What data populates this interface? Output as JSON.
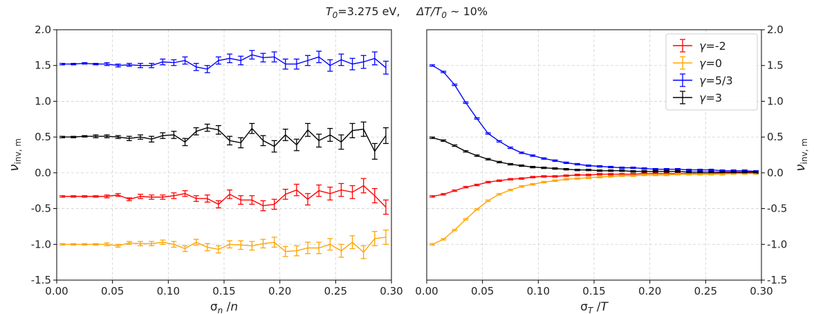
{
  "figure": {
    "title": "T0=3.275 eV,   ΔT/T0 ~ 10%"
  },
  "chart_data": [
    {
      "type": "line",
      "panel": "left",
      "xlabel": "σn /n",
      "ylabel": "νinv, m",
      "xlim": [
        0.0,
        0.3
      ],
      "ylim": [
        -1.5,
        2.0
      ],
      "xticks": [
        "0.00",
        "0.05",
        "0.10",
        "0.15",
        "0.20",
        "0.25",
        "0.30"
      ],
      "yticks": [
        "-1.5",
        "-1.0",
        "-0.5",
        "0.0",
        "0.5",
        "1.0",
        "1.5",
        "2.0"
      ],
      "grid": true,
      "x": [
        0.005,
        0.015,
        0.025,
        0.035,
        0.045,
        0.055,
        0.065,
        0.075,
        0.085,
        0.095,
        0.105,
        0.115,
        0.125,
        0.135,
        0.145,
        0.155,
        0.165,
        0.175,
        0.185,
        0.195,
        0.205,
        0.215,
        0.225,
        0.235,
        0.245,
        0.255,
        0.265,
        0.275,
        0.285,
        0.295
      ],
      "series": [
        {
          "name": "γ=5/3",
          "color": "#0000ff",
          "values": [
            1.52,
            1.52,
            1.53,
            1.52,
            1.52,
            1.5,
            1.51,
            1.5,
            1.5,
            1.55,
            1.54,
            1.57,
            1.48,
            1.45,
            1.57,
            1.6,
            1.57,
            1.65,
            1.61,
            1.62,
            1.52,
            1.52,
            1.57,
            1.62,
            1.5,
            1.58,
            1.52,
            1.55,
            1.6,
            1.47
          ],
          "errors": [
            0.01,
            0.01,
            0.01,
            0.01,
            0.02,
            0.02,
            0.02,
            0.03,
            0.03,
            0.04,
            0.04,
            0.05,
            0.05,
            0.05,
            0.05,
            0.06,
            0.06,
            0.06,
            0.06,
            0.07,
            0.07,
            0.07,
            0.07,
            0.08,
            0.08,
            0.08,
            0.08,
            0.09,
            0.09,
            0.09
          ]
        },
        {
          "name": "γ=3",
          "color": "#000000",
          "values": [
            0.5,
            0.5,
            0.51,
            0.51,
            0.51,
            0.5,
            0.48,
            0.5,
            0.47,
            0.52,
            0.53,
            0.43,
            0.58,
            0.63,
            0.6,
            0.45,
            0.42,
            0.62,
            0.45,
            0.37,
            0.53,
            0.39,
            0.6,
            0.45,
            0.53,
            0.43,
            0.59,
            0.61,
            0.3,
            0.52
          ],
          "errors": [
            0.01,
            0.01,
            0.01,
            0.02,
            0.02,
            0.02,
            0.03,
            0.03,
            0.04,
            0.04,
            0.05,
            0.05,
            0.05,
            0.05,
            0.06,
            0.06,
            0.07,
            0.07,
            0.07,
            0.08,
            0.08,
            0.08,
            0.09,
            0.09,
            0.09,
            0.1,
            0.1,
            0.1,
            0.11,
            0.11
          ]
        },
        {
          "name": "γ=-2",
          "color": "#ff0000",
          "values": [
            -0.33,
            -0.33,
            -0.33,
            -0.33,
            -0.33,
            -0.31,
            -0.37,
            -0.33,
            -0.34,
            -0.34,
            -0.32,
            -0.29,
            -0.36,
            -0.36,
            -0.44,
            -0.3,
            -0.38,
            -0.38,
            -0.46,
            -0.44,
            -0.3,
            -0.24,
            -0.37,
            -0.25,
            -0.29,
            -0.24,
            -0.27,
            -0.18,
            -0.32,
            -0.48
          ],
          "errors": [
            0.01,
            0.01,
            0.01,
            0.01,
            0.02,
            0.02,
            0.02,
            0.03,
            0.03,
            0.03,
            0.04,
            0.04,
            0.04,
            0.05,
            0.05,
            0.06,
            0.06,
            0.06,
            0.07,
            0.07,
            0.07,
            0.08,
            0.08,
            0.08,
            0.09,
            0.09,
            0.09,
            0.1,
            0.1,
            0.1
          ]
        },
        {
          "name": "γ=0",
          "color": "#ffa500",
          "values": [
            -1.0,
            -1.0,
            -1.0,
            -1.0,
            -1.0,
            -1.02,
            -0.98,
            -0.99,
            -0.99,
            -0.97,
            -1.0,
            -1.06,
            -0.97,
            -1.04,
            -1.07,
            -1.0,
            -1.01,
            -1.02,
            -0.99,
            -0.97,
            -1.1,
            -1.09,
            -1.05,
            -1.05,
            -1.0,
            -1.09,
            -0.97,
            -1.11,
            -0.92,
            -0.9
          ],
          "errors": [
            0.01,
            0.01,
            0.01,
            0.01,
            0.02,
            0.02,
            0.02,
            0.03,
            0.03,
            0.03,
            0.04,
            0.04,
            0.04,
            0.05,
            0.05,
            0.05,
            0.06,
            0.06,
            0.06,
            0.07,
            0.07,
            0.07,
            0.08,
            0.08,
            0.08,
            0.09,
            0.09,
            0.09,
            0.1,
            0.1
          ]
        }
      ]
    },
    {
      "type": "line",
      "panel": "right",
      "xlabel": "σT /T",
      "ylabel": "νinv, m",
      "xlim": [
        0.0,
        0.3
      ],
      "ylim": [
        -1.5,
        2.0
      ],
      "xticks": [
        "0.00",
        "0.05",
        "0.10",
        "0.15",
        "0.20",
        "0.25",
        "0.30"
      ],
      "yticks": [
        "-1.5",
        "-1.0",
        "-0.5",
        "0.0",
        "0.5",
        "1.0",
        "1.5",
        "2.0"
      ],
      "grid": true,
      "legend_position": "top-right",
      "x": [
        0.005,
        0.015,
        0.025,
        0.035,
        0.045,
        0.055,
        0.065,
        0.075,
        0.085,
        0.095,
        0.105,
        0.115,
        0.125,
        0.135,
        0.145,
        0.155,
        0.165,
        0.175,
        0.185,
        0.195,
        0.205,
        0.215,
        0.225,
        0.235,
        0.245,
        0.255,
        0.265,
        0.275,
        0.285,
        0.295
      ],
      "series": [
        {
          "name": "γ=-2",
          "color": "#ff0000",
          "values": [
            -0.33,
            -0.3,
            -0.25,
            -0.2,
            -0.17,
            -0.13,
            -0.11,
            -0.09,
            -0.08,
            -0.06,
            -0.05,
            -0.05,
            -0.04,
            -0.03,
            -0.03,
            -0.02,
            -0.02,
            -0.02,
            -0.02,
            -0.01,
            -0.01,
            -0.01,
            -0.01,
            -0.01,
            -0.01,
            -0.01,
            0.0,
            0.0,
            0.0,
            0.0
          ],
          "errors": [
            0.01,
            0.01,
            0.01,
            0.01,
            0.01,
            0.01,
            0.01,
            0.01,
            0.01,
            0.01,
            0.01,
            0.01,
            0.01,
            0.01,
            0.01,
            0.01,
            0.01,
            0.01,
            0.01,
            0.01,
            0.01,
            0.01,
            0.01,
            0.01,
            0.01,
            0.01,
            0.01,
            0.01,
            0.01,
            0.01
          ]
        },
        {
          "name": "γ=0",
          "color": "#ffa500",
          "values": [
            -1.0,
            -0.93,
            -0.8,
            -0.65,
            -0.51,
            -0.39,
            -0.3,
            -0.24,
            -0.19,
            -0.16,
            -0.13,
            -0.11,
            -0.09,
            -0.08,
            -0.07,
            -0.06,
            -0.05,
            -0.04,
            -0.04,
            -0.03,
            -0.03,
            -0.03,
            -0.02,
            -0.02,
            -0.02,
            -0.02,
            -0.02,
            -0.01,
            -0.01,
            -0.01
          ],
          "errors": [
            0.01,
            0.01,
            0.01,
            0.01,
            0.01,
            0.01,
            0.01,
            0.01,
            0.01,
            0.01,
            0.01,
            0.01,
            0.01,
            0.01,
            0.01,
            0.01,
            0.01,
            0.01,
            0.01,
            0.01,
            0.01,
            0.01,
            0.01,
            0.01,
            0.01,
            0.01,
            0.01,
            0.01,
            0.01,
            0.01
          ]
        },
        {
          "name": "γ=5/3",
          "color": "#0000ff",
          "values": [
            1.5,
            1.41,
            1.23,
            0.98,
            0.76,
            0.55,
            0.44,
            0.35,
            0.28,
            0.24,
            0.2,
            0.17,
            0.14,
            0.12,
            0.1,
            0.09,
            0.08,
            0.07,
            0.07,
            0.06,
            0.05,
            0.05,
            0.05,
            0.04,
            0.04,
            0.04,
            0.03,
            0.03,
            0.03,
            0.02
          ],
          "errors": [
            0.01,
            0.01,
            0.01,
            0.01,
            0.01,
            0.01,
            0.01,
            0.01,
            0.01,
            0.01,
            0.01,
            0.01,
            0.01,
            0.01,
            0.01,
            0.01,
            0.01,
            0.01,
            0.01,
            0.01,
            0.01,
            0.01,
            0.01,
            0.01,
            0.01,
            0.01,
            0.01,
            0.01,
            0.01,
            0.01
          ]
        },
        {
          "name": "γ=3",
          "color": "#000000",
          "values": [
            0.49,
            0.45,
            0.38,
            0.3,
            0.24,
            0.19,
            0.15,
            0.12,
            0.1,
            0.08,
            0.07,
            0.06,
            0.05,
            0.04,
            0.04,
            0.03,
            0.03,
            0.03,
            0.02,
            0.02,
            0.02,
            0.02,
            0.02,
            0.01,
            0.01,
            0.01,
            0.01,
            0.01,
            0.01,
            0.01
          ],
          "errors": [
            0.01,
            0.01,
            0.01,
            0.01,
            0.01,
            0.01,
            0.01,
            0.01,
            0.01,
            0.01,
            0.01,
            0.01,
            0.01,
            0.01,
            0.01,
            0.01,
            0.01,
            0.01,
            0.01,
            0.01,
            0.01,
            0.01,
            0.01,
            0.01,
            0.01,
            0.01,
            0.01,
            0.01,
            0.01,
            0.01
          ]
        }
      ]
    }
  ]
}
